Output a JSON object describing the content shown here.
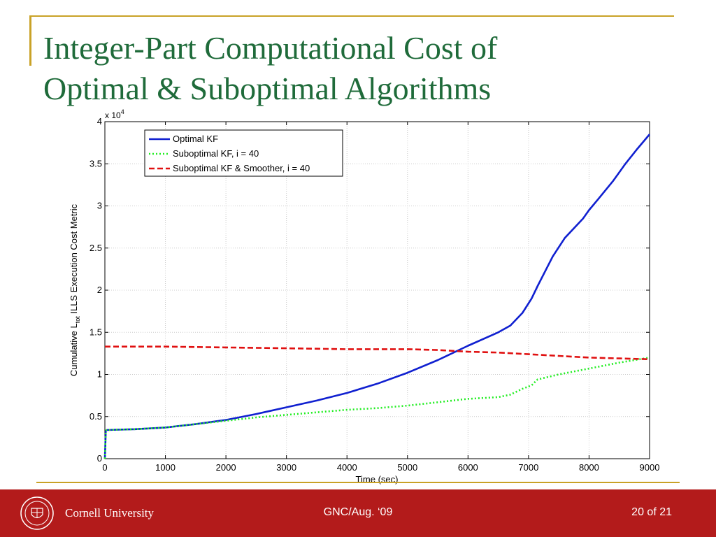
{
  "slide": {
    "title": "Integer-Part Computational Cost of\nOptimal & Suboptimal Algorithms"
  },
  "footer": {
    "university": "Cornell University",
    "center_text": "GNC/Aug. ‘09",
    "page": "20 of 21"
  },
  "colors": {
    "title": "#1f6b3a",
    "accent_rule": "#c9a227",
    "footer_bg": "#b31b1b"
  },
  "chart_data": {
    "type": "line",
    "xlabel": "Time (sec)",
    "ylabel_prefix": "Cumulative L",
    "ylabel_sub": "tot",
    "ylabel_suffix": " ILLS Execution Cost Metric",
    "yscale_label": "x 10",
    "yscale_exp": "4",
    "xlim": [
      0,
      9000
    ],
    "ylim": [
      0,
      4
    ],
    "xticks": [
      0,
      1000,
      2000,
      3000,
      4000,
      5000,
      6000,
      7000,
      8000,
      9000
    ],
    "yticks": [
      0,
      0.5,
      1,
      1.5,
      2,
      2.5,
      3,
      3.5,
      4
    ],
    "xtick_labels": [
      "0",
      "1000",
      "2000",
      "3000",
      "4000",
      "5000",
      "6000",
      "7000",
      "8000",
      "9000"
    ],
    "ytick_labels": [
      "0",
      "0.5",
      "1",
      "1.5",
      "2",
      "2.5",
      "3",
      "3.5",
      "4"
    ],
    "grid": true,
    "legend_position": "top-left",
    "series": [
      {
        "name": "Optimal KF",
        "color": "#1020d0",
        "style": "solid",
        "x": [
          0,
          15,
          30,
          500,
          1000,
          1500,
          2000,
          2500,
          3000,
          3500,
          4000,
          4500,
          5000,
          5500,
          6000,
          6500,
          6700,
          6900,
          7050,
          7150,
          7400,
          7600,
          7900,
          8000,
          8150,
          8400,
          8600,
          8800,
          9000
        ],
        "y": [
          0,
          0.33,
          0.34,
          0.35,
          0.37,
          0.41,
          0.46,
          0.53,
          0.61,
          0.69,
          0.78,
          0.89,
          1.02,
          1.17,
          1.34,
          1.5,
          1.58,
          1.73,
          1.9,
          2.05,
          2.4,
          2.62,
          2.85,
          2.95,
          3.08,
          3.3,
          3.5,
          3.68,
          3.85
        ]
      },
      {
        "name": "Suboptimal KF, i = 40",
        "color": "#22ee22",
        "style": "dotted",
        "x": [
          0,
          15,
          30,
          500,
          1000,
          1500,
          2000,
          2500,
          3000,
          3500,
          4000,
          4500,
          5000,
          5500,
          6000,
          6500,
          6700,
          6900,
          7050,
          7150,
          7500,
          8000,
          8500,
          9000
        ],
        "y": [
          0,
          0.33,
          0.34,
          0.35,
          0.37,
          0.41,
          0.45,
          0.49,
          0.52,
          0.55,
          0.58,
          0.6,
          0.63,
          0.67,
          0.71,
          0.73,
          0.76,
          0.83,
          0.87,
          0.94,
          1.0,
          1.07,
          1.14,
          1.2
        ]
      },
      {
        "name": "Suboptimal KF & Smoother, i = 40",
        "color": "#e01010",
        "style": "dashed",
        "x": [
          0,
          1000,
          2000,
          3000,
          4000,
          5000,
          5500,
          6000,
          6500,
          7000,
          7500,
          8000,
          8500,
          9000
        ],
        "y": [
          1.33,
          1.33,
          1.32,
          1.31,
          1.3,
          1.3,
          1.29,
          1.27,
          1.26,
          1.24,
          1.22,
          1.2,
          1.19,
          1.18
        ]
      }
    ]
  }
}
